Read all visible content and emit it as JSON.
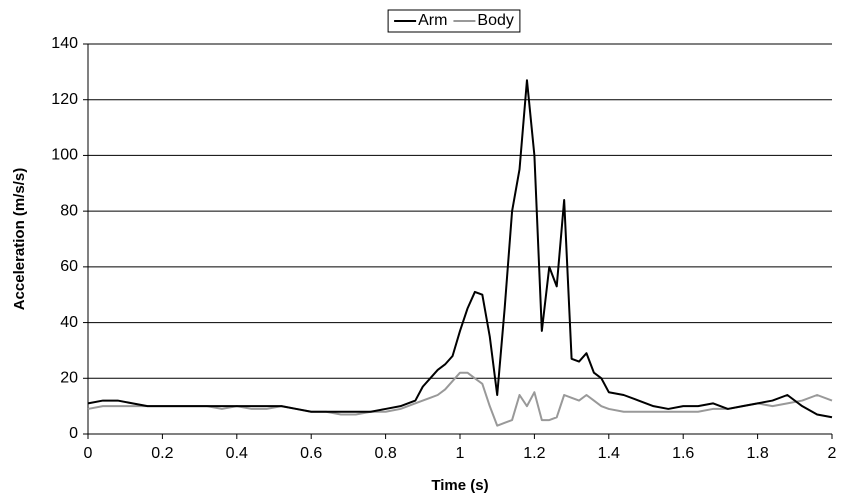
{
  "chart_data": {
    "type": "line",
    "x_label": "Time (s)",
    "y_label": "Acceleration (m/s/s)",
    "x": [
      0,
      0.04,
      0.08,
      0.12,
      0.16,
      0.2,
      0.24,
      0.28,
      0.32,
      0.36,
      0.4,
      0.44,
      0.48,
      0.52,
      0.56,
      0.6,
      0.64,
      0.68,
      0.72,
      0.76,
      0.8,
      0.84,
      0.88,
      0.9,
      0.92,
      0.94,
      0.96,
      0.98,
      1.0,
      1.02,
      1.04,
      1.06,
      1.08,
      1.1,
      1.12,
      1.14,
      1.16,
      1.18,
      1.2,
      1.22,
      1.24,
      1.26,
      1.28,
      1.3,
      1.32,
      1.34,
      1.36,
      1.38,
      1.4,
      1.44,
      1.48,
      1.52,
      1.56,
      1.6,
      1.64,
      1.68,
      1.72,
      1.76,
      1.8,
      1.84,
      1.88,
      1.92,
      1.96,
      2.0
    ],
    "series": [
      {
        "name": "Arm",
        "color": "#000000",
        "values": [
          11,
          12,
          12,
          11,
          10,
          10,
          10,
          10,
          10,
          10,
          10,
          10,
          10,
          10,
          9,
          8,
          8,
          8,
          8,
          8,
          9,
          10,
          12,
          17,
          20,
          23,
          25,
          28,
          37,
          45,
          51,
          50,
          35,
          14,
          45,
          80,
          95,
          127,
          100,
          37,
          60,
          53,
          84,
          27,
          26,
          29,
          22,
          20,
          15,
          14,
          12,
          10,
          9,
          10,
          10,
          11,
          9,
          10,
          11,
          12,
          14,
          10,
          7,
          6
        ]
      },
      {
        "name": "Body",
        "color": "#999999",
        "values": [
          9,
          10,
          10,
          10,
          10,
          10,
          10,
          10,
          10,
          9,
          10,
          9,
          9,
          10,
          9,
          8,
          8,
          7,
          7,
          8,
          8,
          9,
          11,
          12,
          13,
          14,
          16,
          19,
          22,
          22,
          20,
          18,
          10,
          3,
          4,
          5,
          14,
          10,
          15,
          5,
          5,
          6,
          14,
          13,
          12,
          14,
          12,
          10,
          9,
          8,
          8,
          8,
          8,
          8,
          8,
          9,
          9,
          10,
          11,
          10,
          11,
          12,
          14,
          12
        ]
      }
    ],
    "xlim": [
      0,
      2
    ],
    "xticks": [
      0,
      0.2,
      0.4,
      0.6,
      0.8,
      1,
      1.2,
      1.4,
      1.6,
      1.8,
      2
    ],
    "ylim": [
      0,
      140
    ],
    "yticks": [
      0,
      20,
      40,
      60,
      80,
      100,
      120,
      140
    ],
    "grid": true,
    "legend": "top"
  }
}
